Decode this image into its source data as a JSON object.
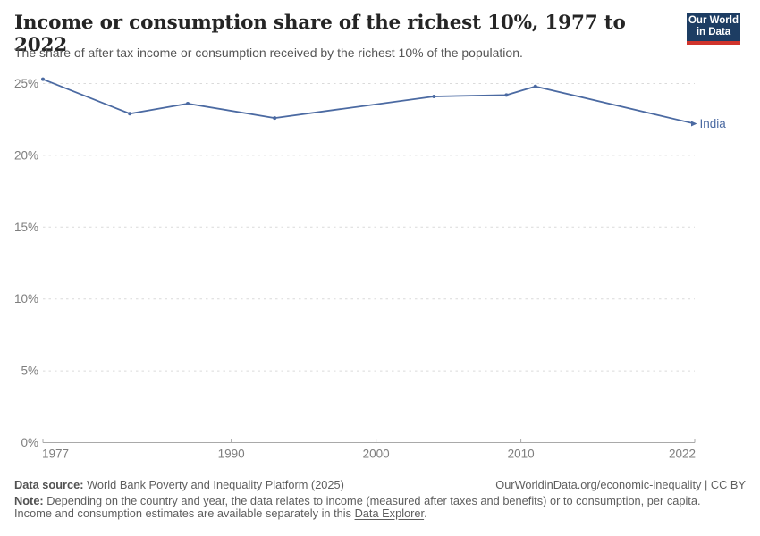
{
  "header": {
    "title": "Income or consumption share of the richest 10%, 1977 to 2022",
    "subtitle": "The share of after tax income or consumption received by the richest 10% of the population."
  },
  "logo": {
    "line1": "Our World",
    "line2": "in Data",
    "bg_color": "#1d3d63",
    "accent_color": "#d0342c"
  },
  "chart_data": {
    "type": "line",
    "title": "Income or consumption share of the richest 10%, 1977 to 2022",
    "xlabel": "",
    "ylabel": "",
    "xlim": [
      1977,
      2022
    ],
    "ylim": [
      0,
      25
    ],
    "xticks": [
      1977,
      1990,
      2000,
      2010,
      2022
    ],
    "yticks": [
      0,
      5,
      10,
      15,
      20,
      25
    ],
    "ytick_suffix": "%",
    "grid": "horizontal-dashed",
    "legend_position": "end-of-line-label",
    "colors": {
      "gridline": "#dadada",
      "axis": "#a9a9a9",
      "tick_label": "#7e7e7e"
    },
    "series": [
      {
        "name": "India",
        "color": "#4b6aa2",
        "x": [
          1977,
          1983,
          1987,
          1993,
          2004,
          2009,
          2011,
          2022
        ],
        "values": [
          25.3,
          22.9,
          23.6,
          22.6,
          24.1,
          24.2,
          24.8,
          22.2
        ]
      }
    ]
  },
  "footer": {
    "datasource_label": "Data source:",
    "datasource_text": " World Bank Poverty and Inequality Platform (2025)",
    "url_text": "OurWorldinData.org/economic-inequality | CC BY",
    "note_label": "Note:",
    "note_line1": " Depending on the country and year, the data relates to income (measured after taxes and benefits) or to consumption, per capita.",
    "note_line2": "Income and consumption estimates are available separately in this ",
    "note_link": "Data Explorer",
    "note_after": "."
  }
}
